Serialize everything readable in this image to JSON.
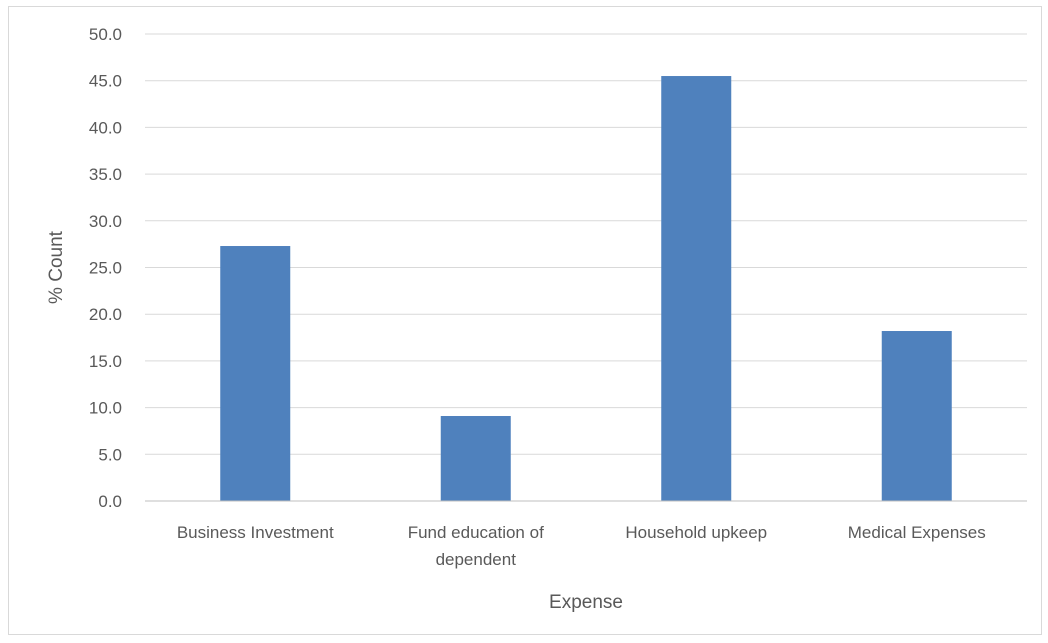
{
  "chart_data": {
    "type": "bar",
    "title": "",
    "xlabel": "Expense",
    "ylabel": "% Count",
    "ylim": [
      0,
      50
    ],
    "ytick_step": 5,
    "ytick_labels": [
      "0.0",
      "5.0",
      "10.0",
      "15.0",
      "20.0",
      "25.0",
      "30.0",
      "35.0",
      "40.0",
      "45.0",
      "50.0"
    ],
    "grid": true,
    "legend": "none",
    "categories": [
      [
        "Business Investment"
      ],
      [
        "Fund education of",
        "dependent"
      ],
      [
        "Household upkeep"
      ],
      [
        "Medical Expenses"
      ]
    ],
    "values": [
      27.3,
      9.1,
      45.5,
      18.2
    ],
    "colors": {
      "bar": "#4f81bd",
      "grid": "#d9d9d9",
      "axis": "#bfbfbf",
      "text": "#595959"
    }
  }
}
